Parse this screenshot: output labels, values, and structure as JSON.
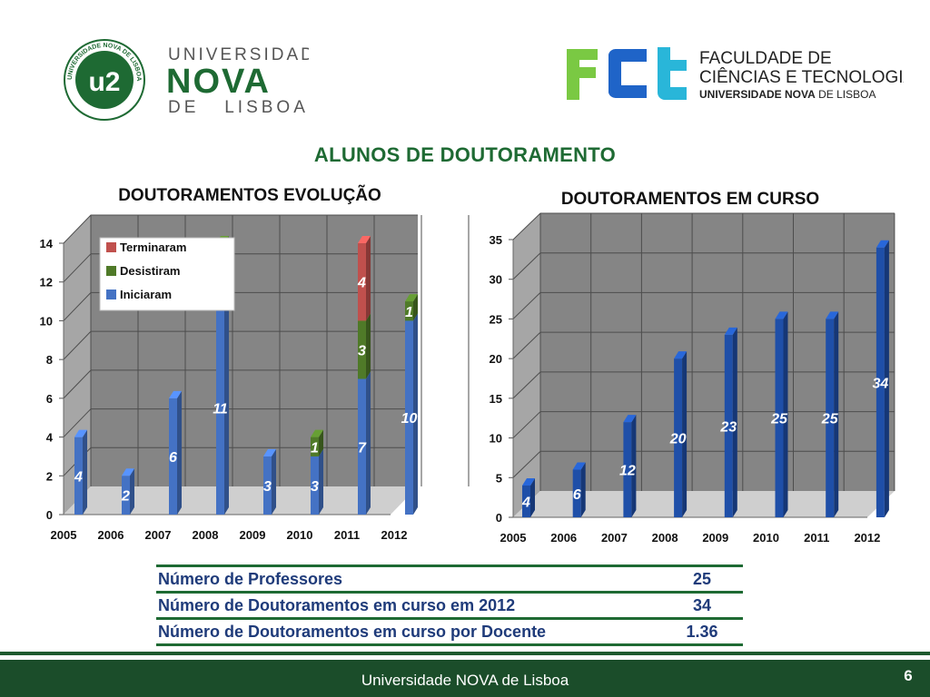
{
  "header": {
    "nova_logo": {
      "seal_text": "UNIVERSIDADE NOVA DE LISBOA",
      "line1": "UNIVERSIDADE",
      "line2": "NOVA",
      "line3": "DE   LISBOA",
      "green": "#1e6a33"
    },
    "fct_logo": {
      "line1": "FACULDADE DE",
      "line2": "CIÊNCIAS E TECNOLOGIA",
      "line3a": "UNIVERSIDADE NOVA",
      "line3b": " DE LISBOA",
      "colors": {
        "f": "#7ac943",
        "c": "#1f64c8",
        "t": "#29b6d9"
      }
    }
  },
  "page_title": "ALUNOS DE DOUTORAMENTO",
  "chart_data": [
    {
      "type": "bar",
      "stacked": true,
      "title": "DOUTORAMENTOS EVOLUÇÃO",
      "categories": [
        "2005",
        "2006",
        "2007",
        "2008",
        "2009",
        "2010",
        "2011",
        "2012"
      ],
      "series": [
        {
          "name": "Iniciaram",
          "color": "#4472c4",
          "values": [
            4,
            2,
            6,
            11,
            3,
            3,
            7,
            10
          ]
        },
        {
          "name": "Desistiram",
          "color": "#4f7a28",
          "values": [
            0,
            0,
            0,
            3,
            0,
            1,
            3,
            1
          ]
        },
        {
          "name": "Terminaram",
          "color": "#c0504d",
          "values": [
            0,
            0,
            0,
            0,
            0,
            0,
            4,
            0
          ]
        }
      ],
      "legend_order": [
        "Terminaram",
        "Desistiram",
        "Iniciaram"
      ],
      "legend_position": "top-left",
      "y_ticks": [
        0,
        2,
        4,
        6,
        8,
        10,
        12,
        14
      ],
      "ylim": [
        0,
        14
      ],
      "grid": true
    },
    {
      "type": "bar",
      "title": "DOUTORAMENTOS EM CURSO",
      "categories": [
        "2005",
        "2006",
        "2007",
        "2008",
        "2009",
        "2010",
        "2011",
        "2012"
      ],
      "values": [
        4,
        6,
        12,
        20,
        23,
        25,
        25,
        34
      ],
      "color": "#1f4fa8",
      "y_ticks": [
        0,
        5,
        10,
        15,
        20,
        25,
        30,
        35
      ],
      "ylim": [
        0,
        35
      ],
      "grid": true
    }
  ],
  "stats": [
    {
      "label": "Número de Professores",
      "value": "25"
    },
    {
      "label": "Número de Doutoramentos em curso em 2012",
      "value": "34"
    },
    {
      "label": "Número de Doutoramentos em curso por Docente",
      "value": "1.36"
    }
  ],
  "footer": {
    "text": "Universidade NOVA de Lisboa",
    "page_number": "6"
  }
}
